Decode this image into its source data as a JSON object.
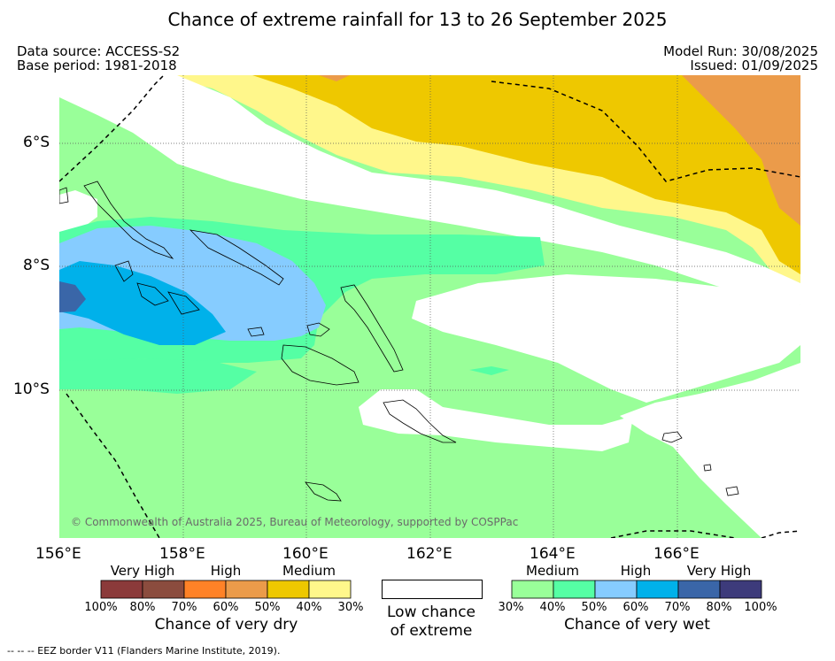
{
  "title": "Chance of extreme rainfall for 13 to 26 September 2025",
  "meta": {
    "data_source": "Data source: ACCESS-S2",
    "base_period": "Base period: 1981-2018",
    "model_run": "Model Run: 30/08/2025",
    "issued": "Issued: 01/09/2025"
  },
  "axes": {
    "lat_labels": [
      "6°S",
      "8°S",
      "10°S"
    ],
    "lon_labels": [
      "156°E",
      "158°E",
      "160°E",
      "162°E",
      "164°E",
      "166°E"
    ]
  },
  "copyright": "© Commonwealth of Australia 2025, Bureau of Meteorology, supported by COSPPac",
  "legend": {
    "dry": {
      "categories": [
        "Very High",
        "High",
        "Medium"
      ],
      "colors": [
        "#8b3a3a",
        "#8b4c3e",
        "#ff8227",
        "#eb9b4a",
        "#eec800",
        "#fff78b"
      ],
      "ticks": [
        "100%",
        "80%",
        "70%",
        "60%",
        "50%",
        "40%",
        "30%"
      ],
      "title": "Chance of very dry"
    },
    "low": {
      "line1": "Low chance",
      "line2": "of extreme"
    },
    "wet": {
      "categories": [
        "Medium",
        "High",
        "Very High"
      ],
      "colors": [
        "#99ff99",
        "#55ffa4",
        "#86ccff",
        "#00b1ea",
        "#3a66a8",
        "#3d3b7b"
      ],
      "ticks": [
        "30%",
        "40%",
        "50%",
        "60%",
        "70%",
        "80%",
        "100%"
      ],
      "title": "Chance of very wet"
    }
  },
  "footnote": "-- -- -- EEZ border V11 (Flanders Marine Institute, 2019)."
}
